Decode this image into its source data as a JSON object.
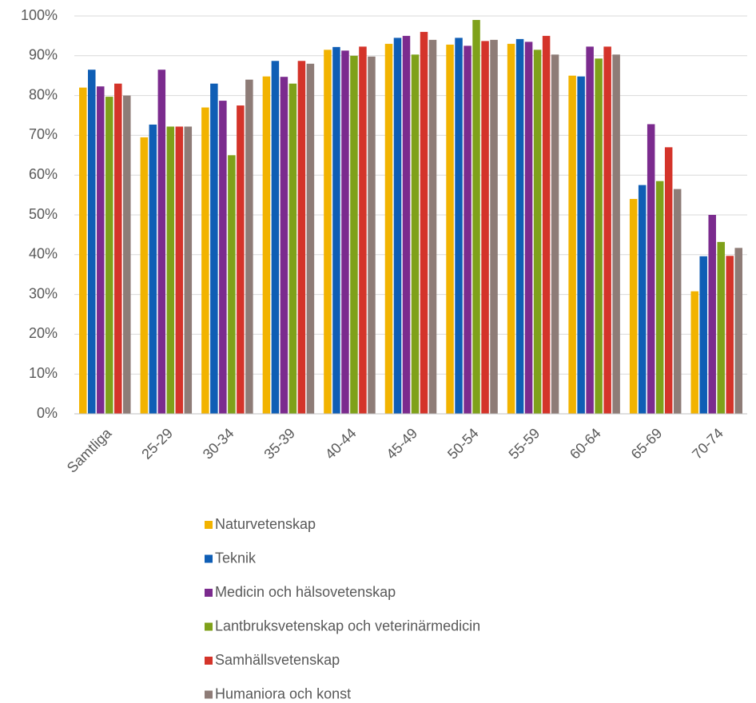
{
  "chart_data": {
    "type": "bar",
    "categories": [
      "Samtliga",
      "25-29",
      "30-34",
      "35-39",
      "40-44",
      "45-49",
      "50-54",
      "55-59",
      "60-64",
      "65-69",
      "70-74"
    ],
    "series": [
      {
        "name": "Naturvetenskap",
        "color": "#f2b300",
        "values": [
          82,
          69.5,
          77,
          84.8,
          91.5,
          93,
          92.8,
          93,
          85,
          54,
          30.8
        ]
      },
      {
        "name": "Teknik",
        "color": "#0f5eb5",
        "values": [
          86.5,
          72.7,
          83,
          88.7,
          92.2,
          94.5,
          94.5,
          94.2,
          84.8,
          57.5,
          39.6
        ]
      },
      {
        "name": "Medicin och hälsovetenskap",
        "color": "#7b2b8e",
        "values": [
          82.3,
          86.5,
          78.7,
          84.7,
          91.3,
          95,
          92.5,
          93.5,
          92.3,
          72.8,
          50
        ]
      },
      {
        "name": "Lantbruksvetenskap och veterinärmedicin",
        "color": "#7fa11a",
        "values": [
          79.7,
          72.2,
          65,
          83,
          90,
          90.3,
          99,
          91.5,
          89.3,
          58.5,
          43.2
        ]
      },
      {
        "name": "Samhällsvetenskap",
        "color": "#d4342a",
        "values": [
          83,
          72.2,
          77.5,
          88.7,
          92.3,
          96,
          93.7,
          95,
          92.3,
          67,
          39.7
        ]
      },
      {
        "name": "Humaniora och konst",
        "color": "#8e7c77",
        "values": [
          80,
          72.2,
          84,
          88,
          89.8,
          94,
          94,
          90.3,
          90.3,
          56.5,
          41.7
        ]
      }
    ],
    "ylim": [
      0,
      100
    ],
    "yticks": [
      {
        "value": 0,
        "label": "0%"
      },
      {
        "value": 10,
        "label": "10%"
      },
      {
        "value": 20,
        "label": "20%"
      },
      {
        "value": 30,
        "label": "30%"
      },
      {
        "value": 40,
        "label": "40%"
      },
      {
        "value": 50,
        "label": "50%"
      },
      {
        "value": 60,
        "label": "60%"
      },
      {
        "value": 70,
        "label": "70%"
      },
      {
        "value": 80,
        "label": "80%"
      },
      {
        "value": 90,
        "label": "90%"
      },
      {
        "value": 100,
        "label": "100%"
      }
    ],
    "grid": true,
    "legend": "bottom"
  }
}
